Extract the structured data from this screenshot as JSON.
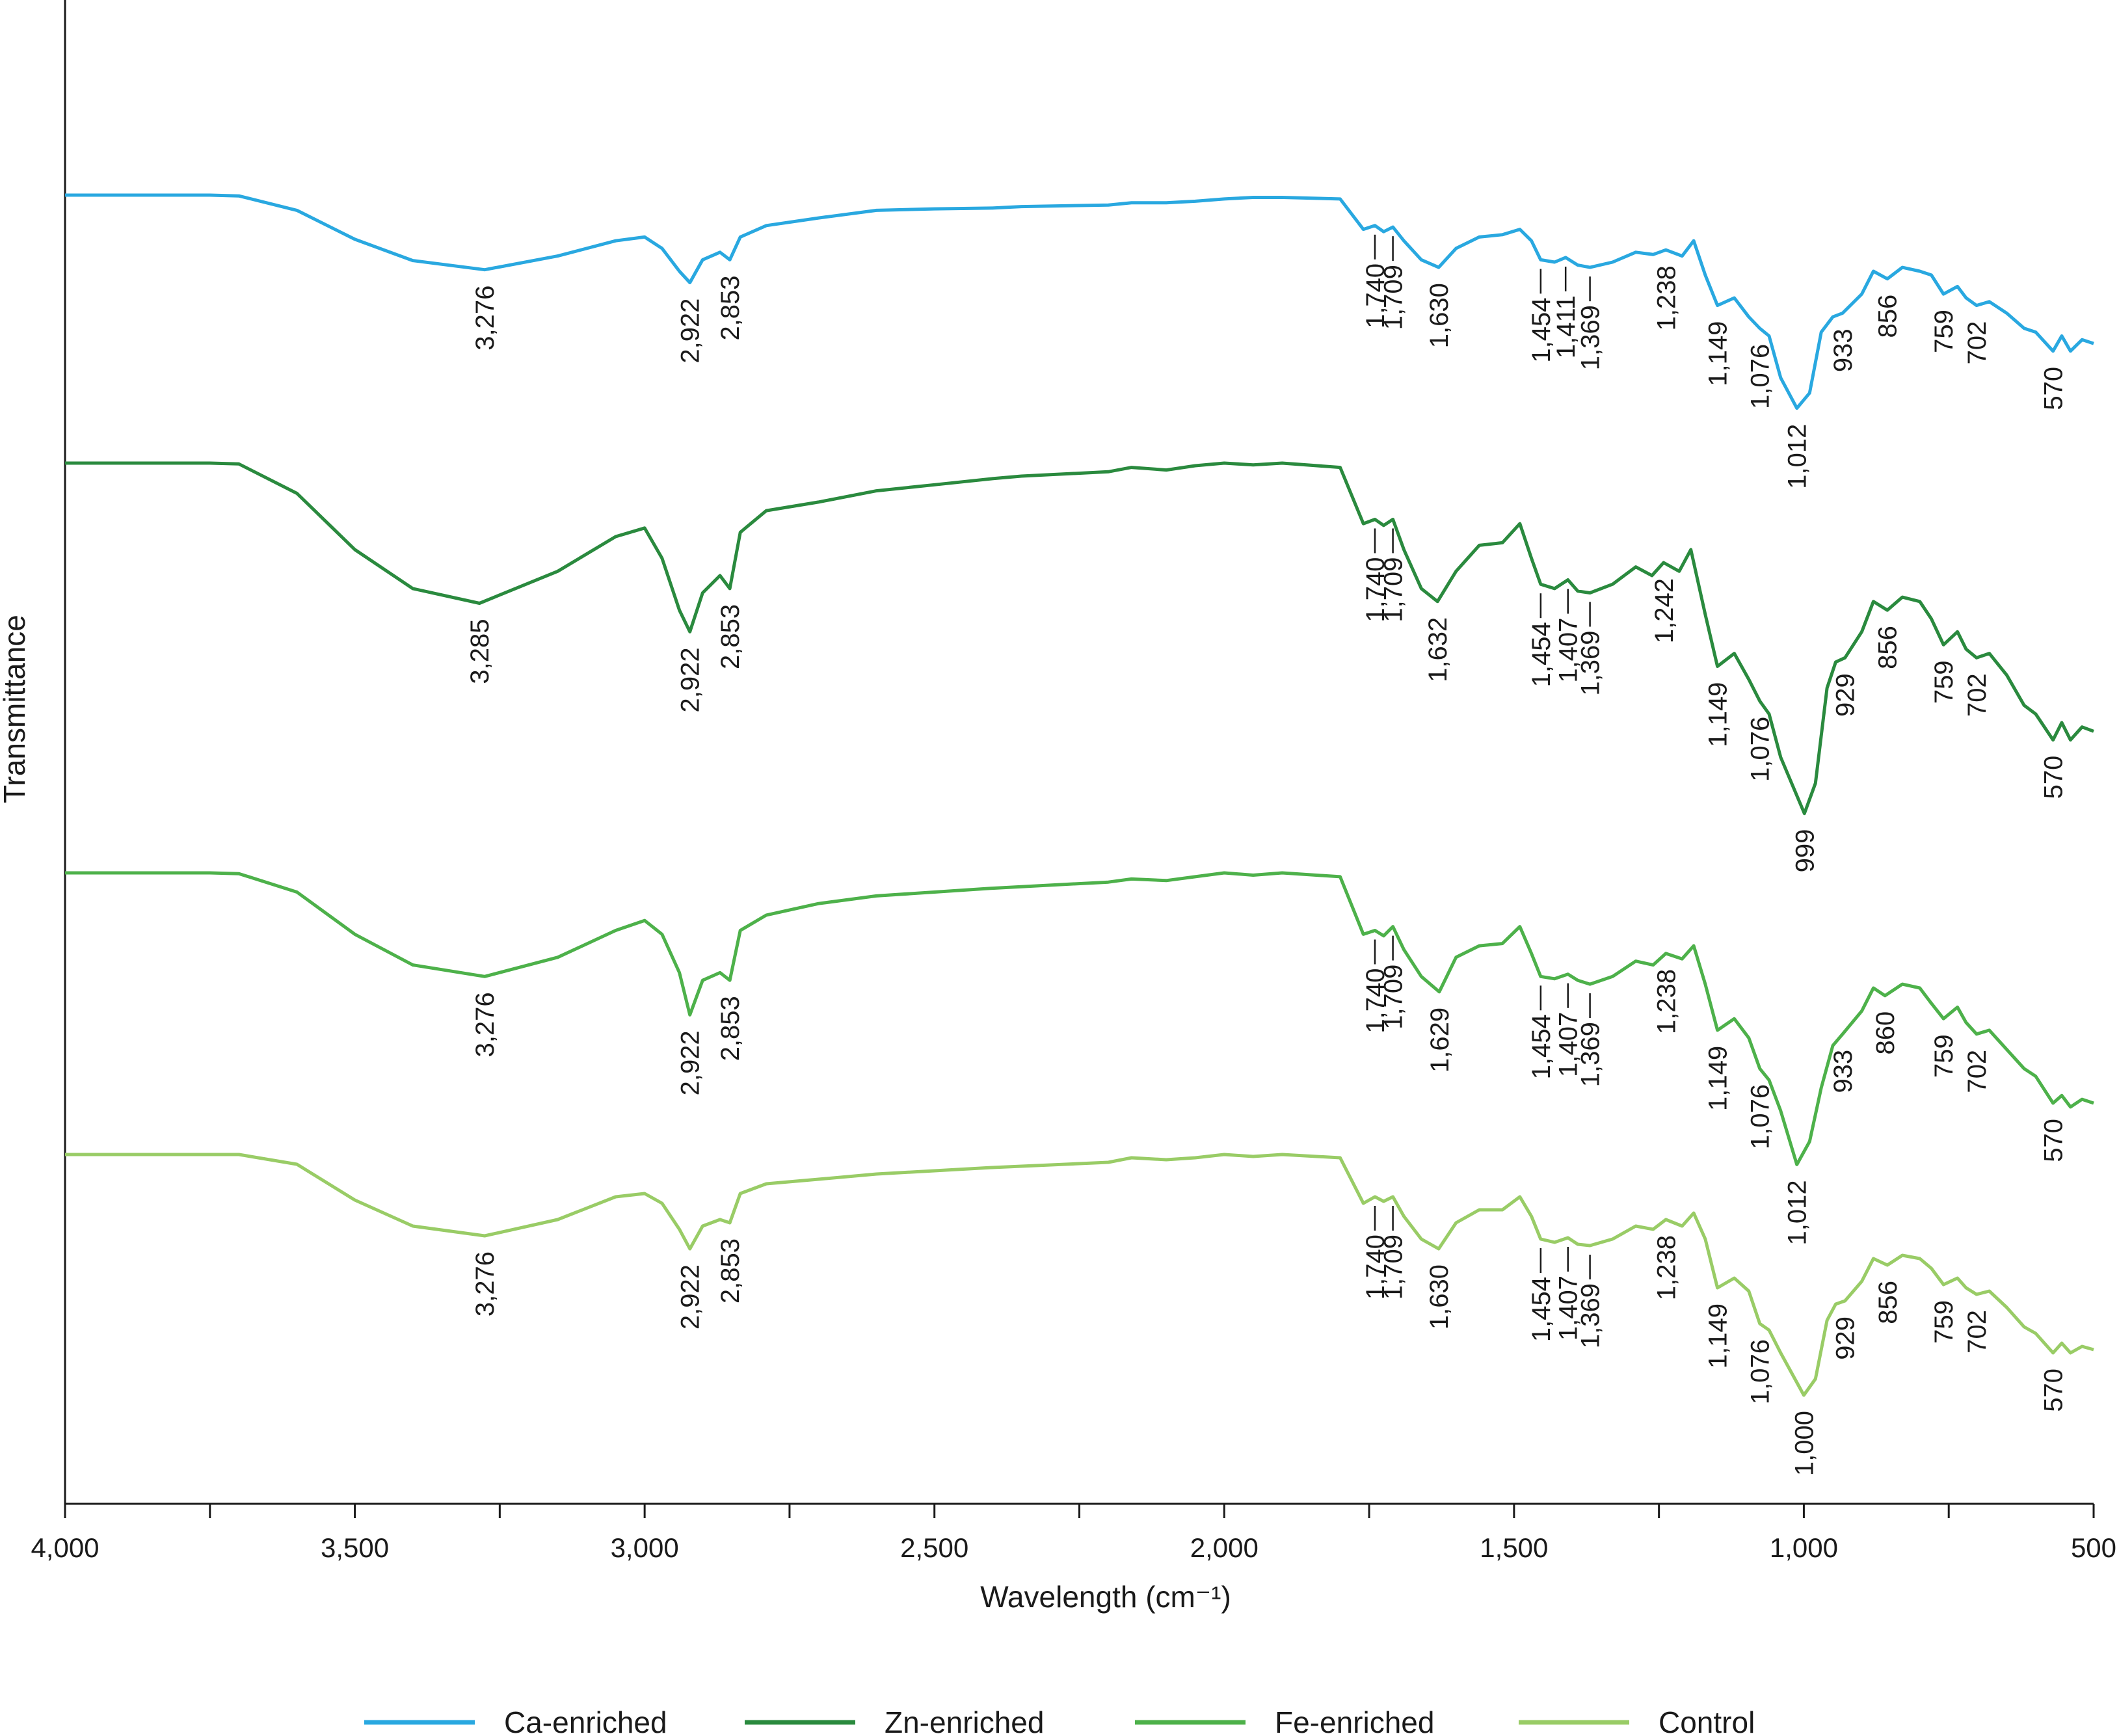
{
  "chart_data": {
    "type": "line",
    "title": "",
    "xlabel": "Wavelength (cm⁻¹)",
    "ylabel": "Transmittance",
    "xlim": [
      4000,
      500
    ],
    "x_reversed": true,
    "x_ticks": [
      4000,
      3750,
      3500,
      3250,
      3000,
      2750,
      2500,
      2250,
      2000,
      1750,
      1500,
      1250,
      1000,
      750,
      500
    ],
    "x_tick_labels": [
      {
        "value": 4000,
        "label": "4,000"
      },
      {
        "value": 3500,
        "label": "3,500"
      },
      {
        "value": 3000,
        "label": "3,000"
      },
      {
        "value": 2500,
        "label": "2,500"
      },
      {
        "value": 2000,
        "label": "2,000"
      },
      {
        "value": 1500,
        "label": "1,500"
      },
      {
        "value": 1000,
        "label": "1,000"
      },
      {
        "value": 500,
        "label": "500"
      }
    ],
    "y_axis_values_shown": false,
    "traces_vertically_offset": true,
    "grid": false,
    "legend_position": "bottom",
    "series": [
      {
        "name": "Ca-enriched",
        "color": "#29a8e0",
        "x": [
          4000,
          3750,
          3700,
          3600,
          3500,
          3400,
          3276,
          3150,
          3050,
          3000,
          2970,
          2940,
          2922,
          2900,
          2870,
          2853,
          2835,
          2790,
          2700,
          2600,
          2500,
          2400,
          2350,
          2200,
          2160,
          2100,
          2050,
          2000,
          1950,
          1900,
          1800,
          1760,
          1740,
          1725,
          1709,
          1690,
          1660,
          1630,
          1600,
          1560,
          1520,
          1490,
          1470,
          1454,
          1430,
          1411,
          1390,
          1369,
          1330,
          1290,
          1260,
          1238,
          1210,
          1190,
          1170,
          1149,
          1120,
          1095,
          1076,
          1060,
          1040,
          1012,
          990,
          970,
          950,
          933,
          900,
          880,
          856,
          830,
          800,
          780,
          759,
          735,
          720,
          702,
          680,
          650,
          620,
          600,
          570,
          555,
          540,
          520,
          500
        ],
        "y": [
          0.0,
          0.0,
          0.01,
          0.2,
          0.58,
          0.86,
          0.98,
          0.8,
          0.6,
          0.55,
          0.7,
          1.0,
          1.15,
          0.85,
          0.75,
          0.85,
          0.55,
          0.4,
          0.3,
          0.2,
          0.18,
          0.17,
          0.15,
          0.13,
          0.1,
          0.1,
          0.08,
          0.05,
          0.03,
          0.03,
          0.05,
          0.45,
          0.4,
          0.48,
          0.42,
          0.6,
          0.85,
          0.95,
          0.7,
          0.55,
          0.52,
          0.45,
          0.6,
          0.85,
          0.88,
          0.82,
          0.92,
          0.95,
          0.88,
          0.75,
          0.78,
          0.72,
          0.8,
          0.6,
          1.05,
          1.45,
          1.35,
          1.6,
          1.75,
          1.85,
          2.4,
          2.8,
          2.6,
          1.8,
          1.6,
          1.55,
          1.3,
          1.0,
          1.1,
          0.95,
          1.0,
          1.05,
          1.3,
          1.2,
          1.35,
          1.45,
          1.4,
          1.55,
          1.75,
          1.8,
          2.05,
          1.85,
          2.05,
          1.9,
          1.95
        ]
      },
      {
        "name": "Zn-enriched",
        "color": "#2a8a3e",
        "x": [
          4000,
          3750,
          3700,
          3600,
          3500,
          3400,
          3285,
          3150,
          3050,
          3000,
          2970,
          2940,
          2922,
          2900,
          2870,
          2853,
          2835,
          2790,
          2700,
          2600,
          2500,
          2400,
          2350,
          2200,
          2160,
          2100,
          2050,
          2000,
          1950,
          1900,
          1800,
          1760,
          1740,
          1725,
          1709,
          1690,
          1660,
          1632,
          1600,
          1560,
          1520,
          1490,
          1470,
          1454,
          1430,
          1407,
          1390,
          1369,
          1330,
          1290,
          1262,
          1242,
          1215,
          1195,
          1170,
          1149,
          1120,
          1095,
          1076,
          1060,
          1040,
          999,
          980,
          960,
          945,
          929,
          900,
          880,
          856,
          830,
          800,
          780,
          759,
          735,
          720,
          702,
          680,
          650,
          620,
          600,
          570,
          555,
          540,
          520,
          500
        ],
        "y": [
          0.0,
          0.0,
          0.01,
          0.35,
          1.0,
          1.45,
          1.62,
          1.25,
          0.85,
          0.75,
          1.1,
          1.7,
          1.95,
          1.5,
          1.3,
          1.45,
          0.8,
          0.55,
          0.45,
          0.32,
          0.25,
          0.18,
          0.15,
          0.1,
          0.05,
          0.08,
          0.03,
          0.0,
          0.02,
          0.0,
          0.05,
          0.7,
          0.65,
          0.72,
          0.65,
          1.0,
          1.45,
          1.6,
          1.25,
          0.95,
          0.92,
          0.7,
          1.1,
          1.4,
          1.45,
          1.35,
          1.48,
          1.5,
          1.4,
          1.2,
          1.3,
          1.15,
          1.25,
          1.0,
          1.75,
          2.35,
          2.2,
          2.5,
          2.75,
          2.9,
          3.4,
          4.05,
          3.7,
          2.6,
          2.3,
          2.25,
          1.95,
          1.6,
          1.7,
          1.55,
          1.6,
          1.8,
          2.1,
          1.95,
          2.15,
          2.25,
          2.2,
          2.45,
          2.8,
          2.9,
          3.2,
          3.0,
          3.2,
          3.05,
          3.1
        ]
      },
      {
        "name": "Fe-enriched",
        "color": "#4db14a",
        "x": [
          4000,
          3750,
          3700,
          3600,
          3500,
          3400,
          3276,
          3150,
          3050,
          3000,
          2970,
          2940,
          2922,
          2900,
          2870,
          2853,
          2835,
          2790,
          2700,
          2600,
          2500,
          2400,
          2350,
          2200,
          2160,
          2100,
          2050,
          2000,
          1950,
          1900,
          1800,
          1760,
          1740,
          1725,
          1709,
          1690,
          1660,
          1629,
          1600,
          1560,
          1520,
          1490,
          1470,
          1454,
          1430,
          1407,
          1390,
          1369,
          1330,
          1290,
          1260,
          1238,
          1210,
          1190,
          1170,
          1149,
          1120,
          1095,
          1076,
          1060,
          1040,
          1012,
          990,
          970,
          950,
          933,
          900,
          880,
          860,
          830,
          800,
          780,
          759,
          735,
          720,
          702,
          680,
          650,
          620,
          600,
          570,
          555,
          540,
          520,
          500
        ],
        "y": [
          0.0,
          0.0,
          0.01,
          0.25,
          0.8,
          1.2,
          1.35,
          1.1,
          0.75,
          0.62,
          0.8,
          1.3,
          1.85,
          1.4,
          1.3,
          1.4,
          0.75,
          0.55,
          0.4,
          0.3,
          0.25,
          0.2,
          0.18,
          0.12,
          0.08,
          0.1,
          0.05,
          0.0,
          0.03,
          0.0,
          0.05,
          0.8,
          0.75,
          0.82,
          0.7,
          1.0,
          1.35,
          1.55,
          1.1,
          0.95,
          0.92,
          0.7,
          1.05,
          1.35,
          1.38,
          1.32,
          1.4,
          1.45,
          1.35,
          1.15,
          1.2,
          1.05,
          1.12,
          0.95,
          1.45,
          2.05,
          1.9,
          2.15,
          2.55,
          2.7,
          3.1,
          3.8,
          3.5,
          2.8,
          2.25,
          2.1,
          1.8,
          1.5,
          1.6,
          1.45,
          1.5,
          1.7,
          1.9,
          1.75,
          1.95,
          2.1,
          2.05,
          2.3,
          2.55,
          2.65,
          3.0,
          2.9,
          3.05,
          2.95,
          3.0
        ]
      },
      {
        "name": "Control",
        "color": "#99cc66",
        "x": [
          4000,
          3750,
          3700,
          3600,
          3500,
          3400,
          3276,
          3150,
          3050,
          3000,
          2970,
          2940,
          2922,
          2900,
          2870,
          2853,
          2835,
          2790,
          2700,
          2600,
          2500,
          2400,
          2350,
          2200,
          2160,
          2100,
          2050,
          2000,
          1950,
          1900,
          1800,
          1760,
          1740,
          1725,
          1709,
          1690,
          1660,
          1630,
          1600,
          1560,
          1520,
          1490,
          1470,
          1454,
          1430,
          1407,
          1390,
          1369,
          1330,
          1290,
          1260,
          1238,
          1210,
          1190,
          1170,
          1149,
          1120,
          1095,
          1076,
          1060,
          1040,
          1000,
          980,
          960,
          945,
          929,
          900,
          880,
          856,
          830,
          800,
          780,
          759,
          735,
          720,
          702,
          680,
          650,
          620,
          600,
          570,
          555,
          540,
          520,
          500
        ],
        "y": [
          0.0,
          0.0,
          0.0,
          0.15,
          0.7,
          1.1,
          1.25,
          1.0,
          0.65,
          0.6,
          0.75,
          1.15,
          1.45,
          1.1,
          1.0,
          1.05,
          0.6,
          0.45,
          0.38,
          0.3,
          0.25,
          0.2,
          0.18,
          0.12,
          0.05,
          0.08,
          0.05,
          0.0,
          0.03,
          0.0,
          0.05,
          0.75,
          0.65,
          0.72,
          0.65,
          0.95,
          1.3,
          1.45,
          1.05,
          0.85,
          0.85,
          0.65,
          0.95,
          1.3,
          1.35,
          1.28,
          1.38,
          1.4,
          1.3,
          1.1,
          1.15,
          1.0,
          1.1,
          0.9,
          1.3,
          2.05,
          1.9,
          2.1,
          2.6,
          2.7,
          3.05,
          3.7,
          3.45,
          2.55,
          2.3,
          2.25,
          1.95,
          1.6,
          1.7,
          1.55,
          1.6,
          1.75,
          2.0,
          1.9,
          2.05,
          2.15,
          2.1,
          2.35,
          2.65,
          2.75,
          3.05,
          2.9,
          3.05,
          2.95,
          3.0
        ]
      }
    ],
    "annotations": [
      {
        "series": "Ca-enriched",
        "labels": [
          {
            "x": 3276,
            "text": "3,276"
          },
          {
            "x": 2922,
            "text": "2,922"
          },
          {
            "x": 2853,
            "text": "2,853"
          },
          {
            "x": 1740,
            "text": "1,740",
            "leader": true
          },
          {
            "x": 1709,
            "text": "1,709",
            "leader": true
          },
          {
            "x": 1630,
            "text": "1,630"
          },
          {
            "x": 1454,
            "text": "1,454",
            "leader": true
          },
          {
            "x": 1411,
            "text": "1,411",
            "leader": true
          },
          {
            "x": 1369,
            "text": "1,369",
            "leader": true
          },
          {
            "x": 1238,
            "text": "1,238"
          },
          {
            "x": 1149,
            "text": "1,149"
          },
          {
            "x": 1076,
            "text": "1,076"
          },
          {
            "x": 1012,
            "text": "1,012"
          },
          {
            "x": 933,
            "text": "933"
          },
          {
            "x": 856,
            "text": "856"
          },
          {
            "x": 759,
            "text": "759"
          },
          {
            "x": 702,
            "text": "702"
          },
          {
            "x": 570,
            "text": "570"
          }
        ]
      },
      {
        "series": "Zn-enriched",
        "labels": [
          {
            "x": 3285,
            "text": "3,285"
          },
          {
            "x": 2922,
            "text": "2,922"
          },
          {
            "x": 2853,
            "text": "2,853"
          },
          {
            "x": 1740,
            "text": "1,740",
            "leader": true
          },
          {
            "x": 1709,
            "text": "1,709",
            "leader": true
          },
          {
            "x": 1632,
            "text": "1,632"
          },
          {
            "x": 1454,
            "text": "1,454",
            "leader": true
          },
          {
            "x": 1407,
            "text": "1,407",
            "leader": true
          },
          {
            "x": 1369,
            "text": "1,369",
            "leader": true
          },
          {
            "x": 1242,
            "text": "1,242"
          },
          {
            "x": 1149,
            "text": "1,149"
          },
          {
            "x": 1076,
            "text": "1,076"
          },
          {
            "x": 999,
            "text": "999"
          },
          {
            "x": 929,
            "text": "929"
          },
          {
            "x": 856,
            "text": "856"
          },
          {
            "x": 759,
            "text": "759"
          },
          {
            "x": 702,
            "text": "702"
          },
          {
            "x": 570,
            "text": "570"
          }
        ]
      },
      {
        "series": "Fe-enriched",
        "labels": [
          {
            "x": 3276,
            "text": "3,276"
          },
          {
            "x": 2922,
            "text": "2,922"
          },
          {
            "x": 2853,
            "text": "2,853"
          },
          {
            "x": 1740,
            "text": "1,740",
            "leader": true
          },
          {
            "x": 1709,
            "text": "1,709",
            "leader": true
          },
          {
            "x": 1629,
            "text": "1,629"
          },
          {
            "x": 1454,
            "text": "1,454",
            "leader": true
          },
          {
            "x": 1407,
            "text": "1,407",
            "leader": true
          },
          {
            "x": 1369,
            "text": "1,369",
            "leader": true
          },
          {
            "x": 1238,
            "text": "1,238"
          },
          {
            "x": 1149,
            "text": "1,149"
          },
          {
            "x": 1076,
            "text": "1,076"
          },
          {
            "x": 1012,
            "text": "1,012"
          },
          {
            "x": 933,
            "text": "933"
          },
          {
            "x": 860,
            "text": "860"
          },
          {
            "x": 759,
            "text": "759"
          },
          {
            "x": 702,
            "text": "702"
          },
          {
            "x": 570,
            "text": "570"
          }
        ]
      },
      {
        "series": "Control",
        "labels": [
          {
            "x": 3276,
            "text": "3,276"
          },
          {
            "x": 2922,
            "text": "2,922"
          },
          {
            "x": 2853,
            "text": "2,853"
          },
          {
            "x": 1740,
            "text": "1,740",
            "leader": true
          },
          {
            "x": 1709,
            "text": "1,709",
            "leader": true
          },
          {
            "x": 1630,
            "text": "1,630"
          },
          {
            "x": 1454,
            "text": "1,454",
            "leader": true
          },
          {
            "x": 1407,
            "text": "1,407",
            "leader": true
          },
          {
            "x": 1369,
            "text": "1,369",
            "leader": true
          },
          {
            "x": 1238,
            "text": "1,238"
          },
          {
            "x": 1149,
            "text": "1,149"
          },
          {
            "x": 1076,
            "text": "1,076"
          },
          {
            "x": 1000,
            "text": "1,000"
          },
          {
            "x": 929,
            "text": "929"
          },
          {
            "x": 856,
            "text": "856"
          },
          {
            "x": 759,
            "text": "759"
          },
          {
            "x": 702,
            "text": "702"
          },
          {
            "x": 570,
            "text": "570"
          }
        ]
      }
    ]
  }
}
